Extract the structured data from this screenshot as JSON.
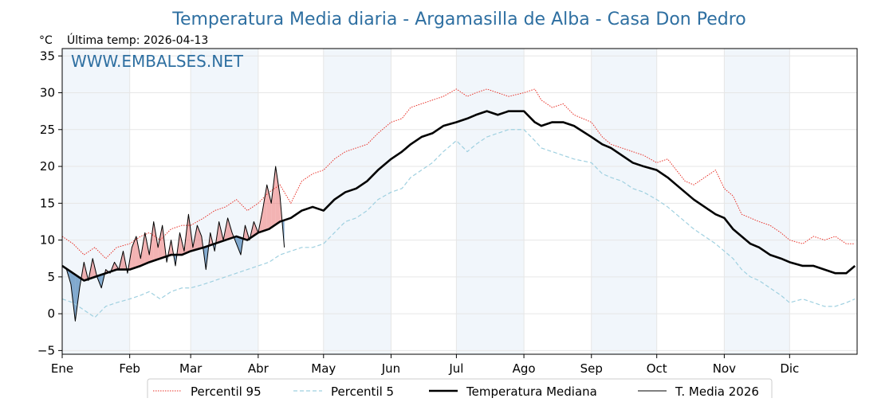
{
  "chart_data": {
    "type": "line",
    "title": "Temperatura Media diaria - Argamasilla de Alba - Casa Don Pedro",
    "unit_label": "°C",
    "last_temp_label": "Última temp: 2026-04-13",
    "watermark": "WWW.EMBALSES.NET",
    "ylim": [
      -5.5,
      36
    ],
    "yticks": [
      -5,
      0,
      5,
      10,
      15,
      20,
      25,
      30,
      35
    ],
    "xlim": [
      0,
      365
    ],
    "months": [
      {
        "label": "Ene",
        "day": 0
      },
      {
        "label": "Feb",
        "day": 31
      },
      {
        "label": "Mar",
        "day": 59
      },
      {
        "label": "Abr",
        "day": 90
      },
      {
        "label": "May",
        "day": 120
      },
      {
        "label": "Jun",
        "day": 151
      },
      {
        "label": "Jul",
        "day": 181
      },
      {
        "label": "Ago",
        "day": 212
      },
      {
        "label": "Sep",
        "day": 243
      },
      {
        "label": "Oct",
        "day": 273
      },
      {
        "label": "Nov",
        "day": 304
      },
      {
        "label": "Dic",
        "day": 334
      }
    ],
    "shaded_month_bands": [
      [
        0,
        31
      ],
      [
        59,
        90
      ],
      [
        120,
        151
      ],
      [
        181,
        212
      ],
      [
        243,
        273
      ],
      [
        304,
        334
      ]
    ],
    "series": [
      {
        "name": "Percentil 95",
        "color": "#e8332a",
        "style": "dotted",
        "x": [
          0,
          5,
          10,
          15,
          20,
          25,
          31,
          36,
          40,
          45,
          50,
          55,
          59,
          65,
          70,
          75,
          80,
          85,
          90,
          95,
          100,
          105,
          110,
          115,
          120,
          125,
          130,
          135,
          140,
          145,
          151,
          156,
          160,
          165,
          170,
          175,
          181,
          186,
          190,
          195,
          200,
          205,
          212,
          217,
          220,
          225,
          230,
          235,
          243,
          248,
          252,
          257,
          262,
          267,
          273,
          278,
          282,
          286,
          290,
          295,
          300,
          304,
          308,
          312,
          316,
          320,
          325,
          330,
          334,
          340,
          345,
          350,
          355,
          360,
          364
        ],
        "y": [
          10.5,
          9.5,
          8.0,
          9.0,
          7.5,
          9.0,
          9.5,
          10.5,
          11.0,
          10.0,
          11.5,
          12.0,
          12.0,
          13.0,
          14.0,
          14.5,
          15.5,
          14.0,
          15.0,
          16.5,
          17.5,
          15.0,
          18.0,
          19.0,
          19.5,
          21.0,
          22.0,
          22.5,
          23.0,
          24.5,
          26.0,
          26.5,
          28.0,
          28.5,
          29.0,
          29.5,
          30.5,
          29.5,
          30.0,
          30.5,
          30.0,
          29.5,
          30.0,
          30.5,
          29.0,
          28.0,
          28.5,
          27.0,
          26.0,
          24.0,
          23.0,
          22.5,
          22.0,
          21.5,
          20.5,
          21.0,
          19.5,
          18.0,
          17.5,
          18.5,
          19.5,
          17.0,
          16.0,
          13.5,
          13.0,
          12.5,
          12.0,
          11.0,
          10.0,
          9.5,
          10.5,
          10.0,
          10.5,
          9.5,
          9.5
        ]
      },
      {
        "name": "Percentil 5",
        "color": "#9fd0e0",
        "style": "dashed",
        "x": [
          0,
          5,
          10,
          15,
          20,
          25,
          31,
          36,
          40,
          45,
          50,
          55,
          59,
          65,
          70,
          75,
          80,
          85,
          90,
          95,
          100,
          105,
          110,
          115,
          120,
          125,
          130,
          135,
          140,
          145,
          151,
          156,
          160,
          165,
          170,
          175,
          181,
          186,
          190,
          195,
          200,
          205,
          212,
          217,
          220,
          225,
          230,
          235,
          243,
          248,
          252,
          257,
          262,
          267,
          273,
          278,
          282,
          286,
          290,
          295,
          300,
          304,
          308,
          312,
          316,
          320,
          325,
          330,
          334,
          340,
          345,
          350,
          355,
          360,
          364
        ],
        "y": [
          2.0,
          1.5,
          0.5,
          -0.5,
          1.0,
          1.5,
          2.0,
          2.5,
          3.0,
          2.0,
          3.0,
          3.5,
          3.5,
          4.0,
          4.5,
          5.0,
          5.5,
          6.0,
          6.5,
          7.0,
          8.0,
          8.5,
          9.0,
          9.0,
          9.5,
          11.0,
          12.5,
          13.0,
          14.0,
          15.5,
          16.5,
          17.0,
          18.5,
          19.5,
          20.5,
          22.0,
          23.5,
          22.0,
          23.0,
          24.0,
          24.5,
          25.0,
          25.0,
          23.5,
          22.5,
          22.0,
          21.5,
          21.0,
          20.5,
          19.0,
          18.5,
          18.0,
          17.0,
          16.5,
          15.5,
          14.5,
          13.5,
          12.5,
          11.5,
          10.5,
          9.5,
          8.5,
          7.5,
          6.0,
          5.0,
          4.5,
          3.5,
          2.5,
          1.5,
          2.0,
          1.5,
          1.0,
          1.0,
          1.5,
          2.0
        ]
      },
      {
        "name": "Temperatura Mediana",
        "color": "#000000",
        "style": "thick",
        "x": [
          0,
          5,
          10,
          15,
          20,
          25,
          31,
          36,
          40,
          45,
          50,
          55,
          59,
          65,
          70,
          75,
          80,
          85,
          90,
          95,
          100,
          105,
          110,
          115,
          120,
          125,
          130,
          135,
          140,
          145,
          151,
          156,
          160,
          165,
          170,
          175,
          181,
          186,
          190,
          195,
          200,
          205,
          212,
          217,
          220,
          225,
          230,
          235,
          243,
          248,
          252,
          257,
          262,
          267,
          273,
          278,
          282,
          286,
          290,
          295,
          300,
          304,
          308,
          312,
          316,
          320,
          325,
          330,
          334,
          340,
          345,
          350,
          355,
          360,
          364
        ],
        "y": [
          6.5,
          5.5,
          4.5,
          5.0,
          5.5,
          6.0,
          6.0,
          6.5,
          7.0,
          7.5,
          8.0,
          8.0,
          8.5,
          9.0,
          9.5,
          10.0,
          10.5,
          10.0,
          11.0,
          11.5,
          12.5,
          13.0,
          14.0,
          14.5,
          14.0,
          15.5,
          16.5,
          17.0,
          18.0,
          19.5,
          21.0,
          22.0,
          23.0,
          24.0,
          24.5,
          25.5,
          26.0,
          26.5,
          27.0,
          27.5,
          27.0,
          27.5,
          27.5,
          26.0,
          25.5,
          26.0,
          26.0,
          25.5,
          24.0,
          23.0,
          22.5,
          21.5,
          20.5,
          20.0,
          19.5,
          18.5,
          17.5,
          16.5,
          15.5,
          14.5,
          13.5,
          13.0,
          11.5,
          10.5,
          9.5,
          9.0,
          8.0,
          7.5,
          7.0,
          6.5,
          6.5,
          6.0,
          5.5,
          5.5,
          6.5
        ]
      },
      {
        "name": "T. Media 2026",
        "color": "#000000",
        "style": "thin",
        "x": [
          0,
          2,
          4,
          6,
          8,
          10,
          12,
          14,
          16,
          18,
          20,
          22,
          24,
          26,
          28,
          30,
          32,
          34,
          36,
          38,
          40,
          42,
          44,
          46,
          48,
          50,
          52,
          54,
          56,
          58,
          60,
          62,
          64,
          66,
          68,
          70,
          72,
          74,
          76,
          78,
          80,
          82,
          84,
          86,
          88,
          90,
          92,
          94,
          96,
          98,
          100,
          102
        ],
        "y": [
          6.5,
          6.0,
          4.0,
          -1.0,
          3.5,
          7.0,
          4.5,
          7.5,
          5.0,
          3.5,
          6.0,
          5.5,
          7.0,
          6.0,
          8.5,
          5.5,
          9.0,
          10.5,
          7.5,
          11.0,
          8.0,
          12.5,
          9.0,
          12.0,
          7.0,
          10.0,
          6.5,
          11.0,
          8.5,
          13.5,
          9.0,
          12.0,
          10.5,
          6.0,
          11.0,
          8.5,
          12.5,
          10.0,
          13.0,
          11.0,
          9.5,
          8.0,
          12.0,
          10.0,
          12.5,
          11.0,
          14.0,
          17.5,
          15.0,
          20.0,
          16.0,
          9.0
        ]
      }
    ],
    "legend": [
      {
        "label": "Percentil 95",
        "style": "dotted",
        "color": "#e8332a"
      },
      {
        "label": "Percentil 5",
        "style": "dashed",
        "color": "#9fd0e0"
      },
      {
        "label": "Temperatura Mediana",
        "style": "thick",
        "color": "#000000"
      },
      {
        "label": "T. Media 2026",
        "style": "thin",
        "color": "#000000"
      }
    ],
    "legend_position": "bottom",
    "fill_above_median_color": "#e97474",
    "fill_below_median_color": "#5b8fbf"
  }
}
